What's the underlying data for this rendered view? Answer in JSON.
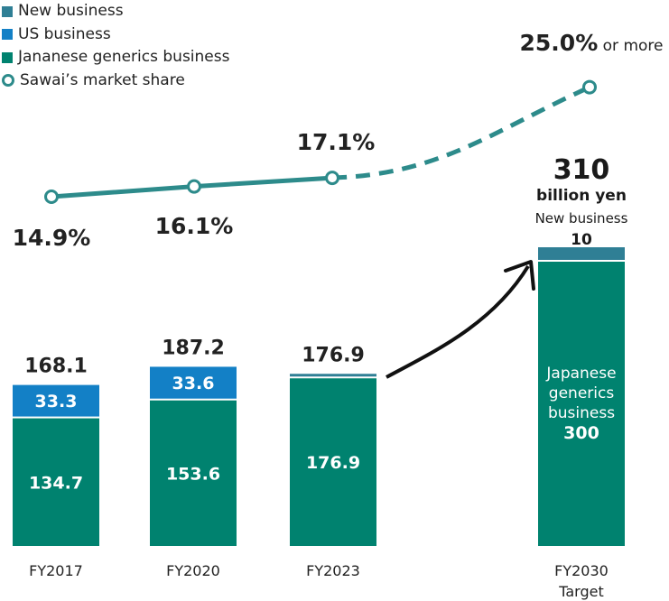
{
  "colors": {
    "new_business": "#2f7f95",
    "us_business": "#1380c6",
    "jp_generics": "#00826f",
    "market_share": "#2d8b8b",
    "arrow": "#111111"
  },
  "legend": [
    {
      "label": "New business",
      "kind": "square",
      "color": "#2f7f95"
    },
    {
      "label": "US business",
      "kind": "square",
      "color": "#1380c6"
    },
    {
      "label": "Jananese generics business",
      "kind": "square",
      "color": "#00826f"
    },
    {
      "label": "Sawai’s market share",
      "kind": "ring",
      "color": "#2d8b8b"
    }
  ],
  "chart_data": {
    "type": "bar",
    "stacked": true,
    "categories": [
      "FY2017",
      "FY2020",
      "FY2023",
      "FY2030"
    ],
    "category_sublabels": [
      "",
      "",
      "",
      "Target"
    ],
    "series": [
      {
        "name": "Jananese generics business",
        "values": [
          134.7,
          153.6,
          176.9,
          300
        ]
      },
      {
        "name": "US business",
        "values": [
          33.3,
          33.6,
          0,
          0
        ]
      },
      {
        "name": "New business",
        "values": [
          0,
          0,
          0,
          10
        ]
      }
    ],
    "totals": [
      "168.1",
      "187.2",
      "176.9",
      "310"
    ],
    "value_labels": {
      "jp": [
        "134.7",
        "153.6",
        "176.9",
        "300"
      ],
      "us": [
        "33.3",
        "33.6",
        "",
        ""
      ]
    },
    "target_annotations": {
      "total_unit": "billion yen",
      "new_label": "New business",
      "new_value": "10",
      "jp_label_lines": [
        "Japanese",
        "generics",
        "business"
      ]
    },
    "line": {
      "name": "Sawai’s market share",
      "values": [
        14.9,
        16.1,
        17.1,
        25.0
      ],
      "labels": [
        "14.9%",
        "16.1%",
        "17.1%",
        "25.0%"
      ],
      "last_suffix": " or more",
      "projected_from_index": 2
    }
  }
}
